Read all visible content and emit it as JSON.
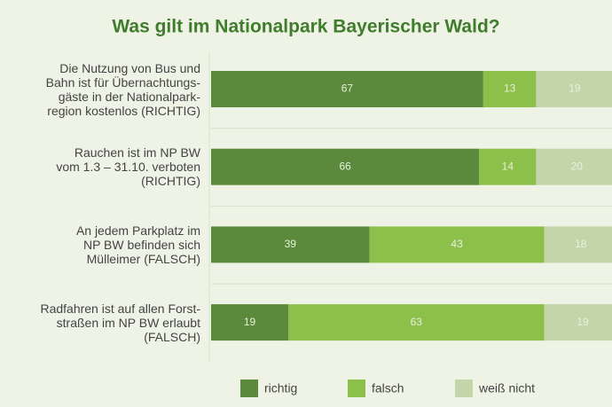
{
  "chart_data": {
    "type": "stacked-barh",
    "title": "Was gilt im Nationalpark Bayerischer Wald?",
    "categories": [
      "Die Nutzung von Bus und\nBahn ist für Übernachtungs-\ngäste in der Nationalpark-\nregion kostenlos (RICHTIG)",
      "Rauchen ist im NP BW\nvom 1.3 – 31.10. verboten\n(RICHTIG)",
      "An jedem Parkplatz im\nNP BW befinden sich\nMülleimer (FALSCH)",
      "Radfahren ist auf allen Forst-\nstraßen im NP BW erlaubt\n(FALSCH)"
    ],
    "series": [
      {
        "name": "richtig",
        "color": "#5b8a3c",
        "values": [
          67,
          66,
          39,
          19
        ]
      },
      {
        "name": "falsch",
        "color": "#8dbf4b",
        "values": [
          13,
          14,
          43,
          63
        ]
      },
      {
        "name": "weiß nicht",
        "color": "#c3d6aa",
        "values": [
          19,
          20,
          18,
          19
        ]
      }
    ],
    "xlim": [
      0,
      100
    ],
    "legend": "bottom"
  }
}
